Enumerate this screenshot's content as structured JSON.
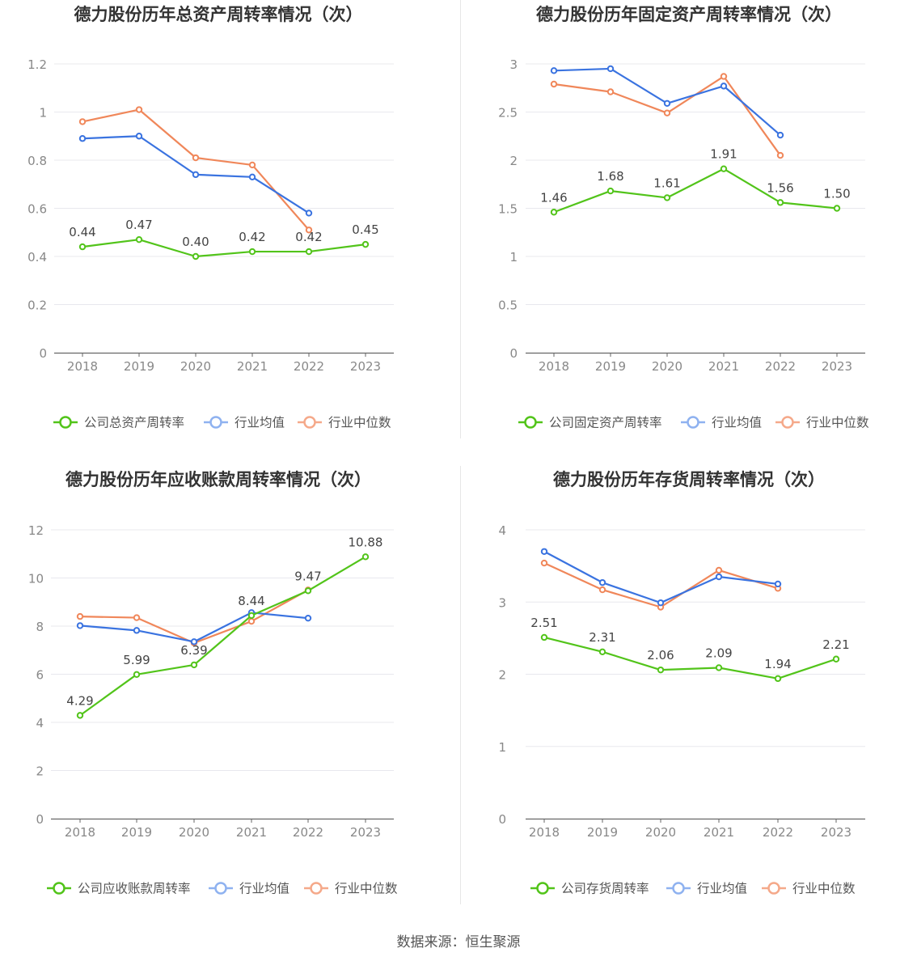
{
  "source": {
    "label": "数据来源：",
    "value": "恒生聚源"
  },
  "colors": {
    "company": "#52c41a",
    "avg": "#3a73e0",
    "median": "#f0875a",
    "avg_legend": "#8fb2f0",
    "median_legend": "#f5a98a",
    "axis": "#666666",
    "grid": "#e8e8ee",
    "tick": "#888888",
    "label": "#444444"
  },
  "chart_data": [
    {
      "type": "line",
      "title": "德力股份历年总资产周转率情况（次）",
      "categories": [
        "2018",
        "2019",
        "2020",
        "2021",
        "2022",
        "2023"
      ],
      "ylim": [
        0,
        1.2
      ],
      "yticks": [
        "0",
        "0.2",
        "0.4",
        "0.6",
        "0.8",
        "1",
        "1.2"
      ],
      "grid": true,
      "legend_position": "bottom",
      "series": [
        {
          "name": "公司总资产周转率",
          "values": [
            0.44,
            0.47,
            0.4,
            0.42,
            0.42,
            0.45
          ],
          "labels": [
            "0.44",
            "0.47",
            "0.40",
            "0.42",
            "0.42",
            "0.45"
          ]
        },
        {
          "name": "行业均值",
          "values": [
            0.89,
            0.9,
            0.74,
            0.73,
            0.58,
            null
          ]
        },
        {
          "name": "行业中位数",
          "values": [
            0.96,
            1.01,
            0.81,
            0.78,
            0.51,
            null
          ]
        }
      ]
    },
    {
      "type": "line",
      "title": "德力股份历年固定资产周转率情况（次）",
      "categories": [
        "2018",
        "2019",
        "2020",
        "2021",
        "2022",
        "2023"
      ],
      "ylim": [
        0,
        3
      ],
      "yticks": [
        "0",
        "0.5",
        "1",
        "1.5",
        "2",
        "2.5",
        "3"
      ],
      "grid": true,
      "legend_position": "bottom",
      "series": [
        {
          "name": "公司固定资产周转率",
          "values": [
            1.46,
            1.68,
            1.61,
            1.91,
            1.56,
            1.5
          ],
          "labels": [
            "1.46",
            "1.68",
            "1.61",
            "1.91",
            "1.56",
            "1.50"
          ]
        },
        {
          "name": "行业均值",
          "values": [
            2.93,
            2.95,
            2.59,
            2.77,
            2.26,
            null
          ]
        },
        {
          "name": "行业中位数",
          "values": [
            2.79,
            2.71,
            2.49,
            2.87,
            2.05,
            null
          ]
        }
      ]
    },
    {
      "type": "line",
      "title": "德力股份历年应收账款周转率情况（次）",
      "categories": [
        "2018",
        "2019",
        "2020",
        "2021",
        "2022",
        "2023"
      ],
      "ylim": [
        0,
        12
      ],
      "yticks": [
        "0",
        "2",
        "4",
        "6",
        "8",
        "10",
        "12"
      ],
      "grid": true,
      "legend_position": "bottom",
      "series": [
        {
          "name": "公司应收账款周转率",
          "values": [
            4.29,
            5.99,
            6.39,
            8.44,
            9.47,
            10.88
          ],
          "labels": [
            "4.29",
            "5.99",
            "6.39",
            "8.44",
            "9.47",
            "10.88"
          ]
        },
        {
          "name": "行业均值",
          "values": [
            8.02,
            7.82,
            7.35,
            8.56,
            8.33,
            null
          ]
        },
        {
          "name": "行业中位数",
          "values": [
            8.4,
            8.35,
            7.3,
            8.2,
            9.5,
            null
          ]
        }
      ]
    },
    {
      "type": "line",
      "title": "德力股份历年存货周转率情况（次）",
      "categories": [
        "2018",
        "2019",
        "2020",
        "2021",
        "2022",
        "2023"
      ],
      "ylim": [
        0,
        4
      ],
      "yticks": [
        "0",
        "1",
        "2",
        "3",
        "4"
      ],
      "grid": true,
      "legend_position": "bottom",
      "series": [
        {
          "name": "公司存货周转率",
          "values": [
            2.51,
            2.31,
            2.06,
            2.09,
            1.94,
            2.21
          ],
          "labels": [
            "2.51",
            "2.31",
            "2.06",
            "2.09",
            "1.94",
            "2.21"
          ]
        },
        {
          "name": "行业均值",
          "values": [
            3.7,
            3.27,
            2.99,
            3.35,
            3.25,
            null
          ]
        },
        {
          "name": "行业中位数",
          "values": [
            3.54,
            3.17,
            2.93,
            3.44,
            3.19,
            null
          ]
        }
      ]
    }
  ]
}
